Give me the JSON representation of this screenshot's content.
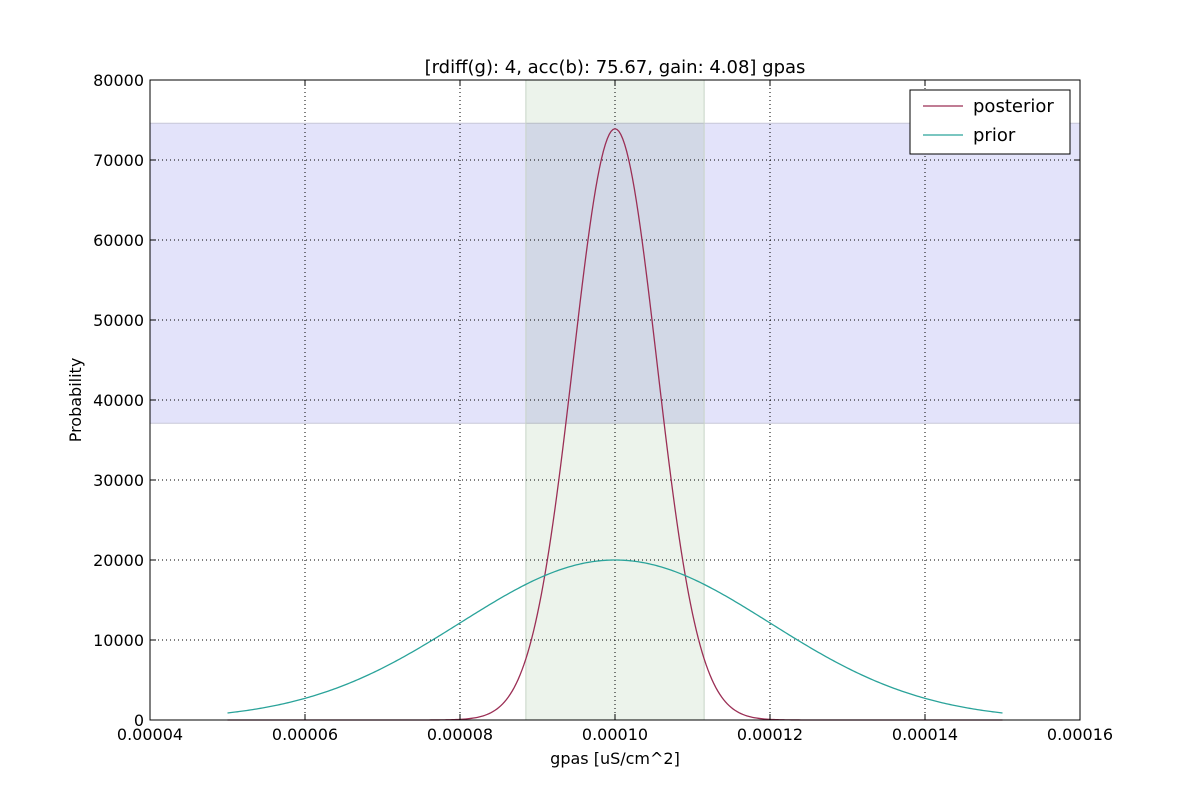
{
  "chart_data": {
    "type": "line",
    "title": "[rdiff(g): 4, acc(b): 75.67, gain: 4.08] gpas",
    "xlabel": "gpas [uS/cm^2]",
    "ylabel": "Probability",
    "xlim": [
      4e-05,
      0.00016
    ],
    "ylim": [
      0,
      80000
    ],
    "x_ticks": [
      "0.00004",
      "0.00006",
      "0.00008",
      "0.00010",
      "0.00012",
      "0.00014",
      "0.00016"
    ],
    "y_ticks": [
      "0",
      "10000",
      "20000",
      "30000",
      "40000",
      "50000",
      "60000",
      "70000",
      "80000"
    ],
    "grid": true,
    "legend_position": "top-right",
    "shaded_regions": [
      {
        "orientation": "horizontal",
        "y_range": [
          37100,
          74600
        ],
        "color": "#e3e3fa"
      },
      {
        "orientation": "vertical",
        "x_range": [
          8.85e-05,
          0.0001115
        ],
        "color": "#e4efe3"
      }
    ],
    "series": [
      {
        "name": "posterior",
        "color": "#9b2f55",
        "x_range": [
          5e-05,
          0.00015
        ],
        "mean": 0.0001,
        "sd": 5.4e-06,
        "peak": 73900
      },
      {
        "name": "prior",
        "color": "#2aa39a",
        "x_range": [
          5e-05,
          0.00015
        ],
        "mean": 0.0001,
        "sd": 2e-05,
        "peak": 20000
      }
    ]
  }
}
